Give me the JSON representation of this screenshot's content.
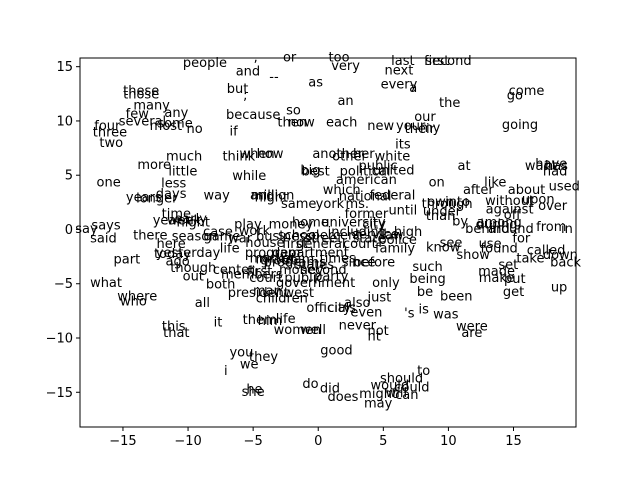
{
  "chart_data": {
    "type": "scatter",
    "title": "",
    "xlabel": "",
    "ylabel": "",
    "xlim": [
      -18.3,
      19.8
    ],
    "ylim": [
      -18.2,
      15.8
    ],
    "xticks": [
      -15,
      -10,
      -5,
      0,
      5,
      10,
      15
    ],
    "yticks": [
      -15,
      -10,
      -5,
      0,
      5,
      10,
      15
    ],
    "grid": false,
    "legend": "none",
    "points": [
      {
        "label": "people",
        "x": -8.7,
        "y": 15.3
      },
      {
        "label": ",",
        "x": -4.8,
        "y": 15.8
      },
      {
        "label": "or",
        "x": -2.2,
        "y": 15.8
      },
      {
        "label": "too",
        "x": 1.6,
        "y": 15.8
      },
      {
        "label": "last",
        "x": 6.5,
        "y": 15.5
      },
      {
        "label": "first",
        "x": 9.1,
        "y": 15.5
      },
      {
        "label": "second",
        "x": 10.0,
        "y": 15.5
      },
      {
        "label": "and",
        "x": -5.4,
        "y": 14.5
      },
      {
        "label": "very",
        "x": 2.1,
        "y": 15.0
      },
      {
        "label": "next",
        "x": 6.2,
        "y": 14.6
      },
      {
        "label": "--",
        "x": -3.4,
        "y": 14.0
      },
      {
        "label": "as",
        "x": -0.2,
        "y": 13.5
      },
      {
        "label": "every",
        "x": 6.2,
        "y": 13.3
      },
      {
        "label": "a",
        "x": 7.3,
        "y": 13.0
      },
      {
        "label": "these",
        "x": -13.6,
        "y": 12.7
      },
      {
        "label": "those",
        "x": -13.6,
        "y": 12.4
      },
      {
        "label": "but",
        "x": -6.2,
        "y": 12.9
      },
      {
        "label": ";",
        "x": -5.6,
        "y": 12.3
      },
      {
        "label": "go",
        "x": 15.1,
        "y": 12.3
      },
      {
        "label": "come",
        "x": 16.0,
        "y": 12.7
      },
      {
        "label": "an",
        "x": 2.1,
        "y": 11.8
      },
      {
        "label": "the",
        "x": 10.1,
        "y": 11.6
      },
      {
        "label": "many",
        "x": -12.8,
        "y": 11.4
      },
      {
        "label": "so",
        "x": -1.9,
        "y": 10.9
      },
      {
        "label": "few",
        "x": -13.9,
        "y": 10.6
      },
      {
        "label": "any",
        "x": -10.9,
        "y": 10.7
      },
      {
        "label": "because",
        "x": -5.0,
        "y": 10.5
      },
      {
        "label": "our",
        "x": 8.2,
        "y": 10.3
      },
      {
        "label": "several",
        "x": -13.5,
        "y": 9.9
      },
      {
        "label": "some",
        "x": -11.0,
        "y": 9.7
      },
      {
        "label": "most",
        "x": -11.7,
        "y": 9.5
      },
      {
        "label": "then",
        "x": -2.0,
        "y": 9.8
      },
      {
        "label": "now",
        "x": -1.3,
        "y": 9.8
      },
      {
        "label": "each",
        "x": 1.8,
        "y": 9.8
      },
      {
        "label": "new",
        "x": 4.8,
        "y": 9.5
      },
      {
        "label": "your",
        "x": 7.1,
        "y": 9.5
      },
      {
        "label": "my",
        "x": 8.6,
        "y": 9.3
      },
      {
        "label": "their",
        "x": 7.8,
        "y": 9.2
      },
      {
        "label": "going",
        "x": 15.5,
        "y": 9.6
      },
      {
        "label": "four",
        "x": -16.2,
        "y": 9.5
      },
      {
        "label": "three",
        "x": -16.0,
        "y": 8.9
      },
      {
        "label": "no",
        "x": -9.5,
        "y": 9.2
      },
      {
        "label": "if",
        "x": -6.5,
        "y": 9.0
      },
      {
        "label": "two",
        "x": -15.9,
        "y": 7.9
      },
      {
        "label": "its",
        "x": 6.5,
        "y": 7.8
      },
      {
        "label": "when",
        "x": -4.7,
        "y": 6.9
      },
      {
        "label": "how",
        "x": -3.7,
        "y": 6.9
      },
      {
        "label": "another",
        "x": 1.5,
        "y": 6.9
      },
      {
        "label": "her",
        "x": 3.5,
        "y": 6.9
      },
      {
        "label": "other",
        "x": 2.4,
        "y": 6.7
      },
      {
        "label": "white",
        "x": 5.7,
        "y": 6.7
      },
      {
        "label": "much",
        "x": -10.3,
        "y": 6.7
      },
      {
        "label": "think",
        "x": -6.1,
        "y": 6.7
      },
      {
        "label": "more",
        "x": -12.6,
        "y": 5.9
      },
      {
        "label": "public",
        "x": 4.6,
        "y": 5.8
      },
      {
        "label": "have",
        "x": 17.9,
        "y": 6.0
      },
      {
        "label": "want",
        "x": 17.1,
        "y": 5.8
      },
      {
        "label": "has",
        "x": 18.3,
        "y": 5.8
      },
      {
        "label": "little",
        "x": -10.4,
        "y": 5.3
      },
      {
        "label": "big",
        "x": -0.6,
        "y": 5.4
      },
      {
        "label": "best",
        "x": -0.2,
        "y": 5.3
      },
      {
        "label": "political",
        "x": 3.6,
        "y": 5.3
      },
      {
        "label": "united",
        "x": 5.8,
        "y": 5.4
      },
      {
        "label": "at",
        "x": 11.2,
        "y": 5.8
      },
      {
        "label": "had",
        "x": 18.2,
        "y": 5.3
      },
      {
        "label": "while",
        "x": -5.3,
        "y": 4.9
      },
      {
        "label": "american",
        "x": 3.7,
        "y": 4.5
      },
      {
        "label": "one",
        "x": -16.1,
        "y": 4.3
      },
      {
        "label": "less",
        "x": -11.1,
        "y": 4.2
      },
      {
        "label": "on",
        "x": 9.1,
        "y": 4.3
      },
      {
        "label": "like",
        "x": 13.6,
        "y": 4.3
      },
      {
        "label": "used",
        "x": 18.9,
        "y": 3.9
      },
      {
        "label": "which",
        "x": 1.8,
        "y": 3.6
      },
      {
        "label": "after",
        "x": 12.3,
        "y": 3.6
      },
      {
        "label": "about",
        "x": 16.0,
        "y": 3.6
      },
      {
        "label": "days",
        "x": -11.3,
        "y": 3.2
      },
      {
        "label": "way",
        "x": -7.8,
        "y": 3.1
      },
      {
        "label": "million",
        "x": -3.5,
        "y": 3.1
      },
      {
        "label": "and",
        "x": -4.3,
        "y": 3.1
      },
      {
        "label": "night",
        "x": -3.6,
        "y": 2.9
      },
      {
        "label": "national",
        "x": 3.6,
        "y": 3.0
      },
      {
        "label": "federal",
        "x": 5.7,
        "y": 3.1
      },
      {
        "label": "years",
        "x": -13.4,
        "y": 2.9
      },
      {
        "label": "longer",
        "x": -12.4,
        "y": 2.8
      },
      {
        "label": "without",
        "x": 14.7,
        "y": 2.6
      },
      {
        "label": "into",
        "x": 10.7,
        "y": 2.5
      },
      {
        "label": "own",
        "x": 9.4,
        "y": 2.5
      },
      {
        "label": "through",
        "x": 9.9,
        "y": 2.3
      },
      {
        "label": "upon",
        "x": 16.9,
        "y": 2.7
      },
      {
        "label": "same",
        "x": -1.5,
        "y": 2.3
      },
      {
        "label": "york",
        "x": 0.9,
        "y": 2.3
      },
      {
        "label": "ms.",
        "x": 3.0,
        "y": 2.3
      },
      {
        "label": "over",
        "x": 18.0,
        "y": 2.1
      },
      {
        "label": "against",
        "x": 14.7,
        "y": 1.8
      },
      {
        "label": "until",
        "x": 6.5,
        "y": 1.7
      },
      {
        "label": "under",
        "x": 9.5,
        "y": 1.6
      },
      {
        "label": "former",
        "x": 3.7,
        "y": 1.4
      },
      {
        "label": "time",
        "x": -10.9,
        "y": 1.4
      },
      {
        "label": "than",
        "x": 9.4,
        "y": 1.2
      },
      {
        "label": "off",
        "x": 14.9,
        "y": 1.3
      },
      {
        "label": "by",
        "x": 10.9,
        "y": 0.7
      },
      {
        "label": "year",
        "x": -11.6,
        "y": 0.8
      },
      {
        "label": "early",
        "x": -9.8,
        "y": 0.9
      },
      {
        "label": "week",
        "x": -10.3,
        "y": 0.8
      },
      {
        "label": "night",
        "x": -9.6,
        "y": 0.6
      },
      {
        "label": "home",
        "x": -0.6,
        "y": 0.6
      },
      {
        "label": "university",
        "x": 2.7,
        "y": 0.6
      },
      {
        "label": "city",
        "x": 4.3,
        "y": 0.4
      },
      {
        "label": "play",
        "x": -5.4,
        "y": 0.4
      },
      {
        "label": "money",
        "x": -2.1,
        "y": 0.4
      },
      {
        "label": "during",
        "x": 13.7,
        "y": 0.4
      },
      {
        "label": "among",
        "x": 13.9,
        "y": 0.6
      },
      {
        "label": "behind",
        "x": 13.0,
        "y": 0.0
      },
      {
        "label": "around",
        "x": 14.8,
        "y": 0.0
      },
      {
        "label": "from",
        "x": 17.9,
        "y": 0.2
      },
      {
        "label": "in",
        "x": 19.1,
        "y": 0.0
      },
      {
        "label": "says",
        "x": -16.3,
        "y": 0.3
      },
      {
        "label": "say",
        "x": -17.8,
        "y": 0.0
      },
      {
        "label": "work",
        "x": -4.9,
        "y": -0.2
      },
      {
        "label": "including",
        "x": 3.0,
        "y": -0.3
      },
      {
        "label": "high",
        "x": 6.9,
        "y": -0.3
      },
      {
        "label": "case",
        "x": -7.7,
        "y": -0.3
      },
      {
        "label": "service",
        "x": 4.4,
        "y": -0.5
      },
      {
        "label": "there",
        "x": -12.9,
        "y": -0.6
      },
      {
        "label": "season",
        "x": -9.5,
        "y": -0.7
      },
      {
        "label": "game",
        "x": -7.4,
        "y": -0.7
      },
      {
        "label": "business",
        "x": -2.6,
        "y": -0.7
      },
      {
        "label": "school",
        "x": -1.5,
        "y": -0.6
      },
      {
        "label": "percent",
        "x": 1.4,
        "y": -0.6
      },
      {
        "label": "law",
        "x": 5.7,
        "y": -0.6
      },
      {
        "label": "said",
        "x": -16.5,
        "y": -0.9
      },
      {
        "label": "war",
        "x": -6.0,
        "y": -0.9
      },
      {
        "label": "street",
        "x": 0.4,
        "y": -0.9
      },
      {
        "label": "state",
        "x": 3.9,
        "y": -0.9
      },
      {
        "label": "police",
        "x": 6.1,
        "y": -1.0
      },
      {
        "label": "for",
        "x": 15.6,
        "y": -0.9
      },
      {
        "label": "here",
        "x": -11.3,
        "y": -1.4
      },
      {
        "label": "house",
        "x": -4.1,
        "y": -1.3
      },
      {
        "label": "first",
        "x": -1.8,
        "y": -1.4
      },
      {
        "label": "general",
        "x": 0.2,
        "y": -1.4
      },
      {
        "label": "court",
        "x": 3.2,
        "y": -1.4
      },
      {
        "label": "see",
        "x": 10.2,
        "y": -1.3
      },
      {
        "label": "use",
        "x": 13.2,
        "y": -1.4
      },
      {
        "label": "know",
        "x": 9.6,
        "y": -1.7
      },
      {
        "label": "found",
        "x": 13.9,
        "y": -1.8
      },
      {
        "label": "called",
        "x": 17.5,
        "y": -2.0
      },
      {
        "label": "life",
        "x": -6.8,
        "y": -1.8
      },
      {
        "label": "family",
        "x": 5.9,
        "y": -1.8
      },
      {
        "label": "today",
        "x": -11.2,
        "y": -2.3
      },
      {
        "label": "yesterday",
        "x": -10.0,
        "y": -2.2
      },
      {
        "label": "program",
        "x": -3.5,
        "y": -2.2
      },
      {
        "label": "department",
        "x": -0.6,
        "y": -2.2
      },
      {
        "label": "down",
        "x": 18.6,
        "y": -2.4
      },
      {
        "label": "show",
        "x": 11.9,
        "y": -2.4
      },
      {
        "label": "take",
        "x": 16.3,
        "y": -2.7
      },
      {
        "label": "part",
        "x": -14.7,
        "y": -2.8
      },
      {
        "label": "mr.",
        "x": -4.0,
        "y": -2.8
      },
      {
        "label": "team",
        "x": -1.6,
        "y": -2.8
      },
      {
        "label": "times",
        "x": 1.5,
        "y": -2.7
      },
      {
        "label": "group",
        "x": -3.0,
        "y": -2.9
      },
      {
        "label": "market",
        "x": -3.5,
        "y": -2.7
      },
      {
        "label": "ago",
        "x": -10.8,
        "y": -3.0
      },
      {
        "label": "back",
        "x": 19.0,
        "y": -3.1
      },
      {
        "label": "programs",
        "x": -1.8,
        "y": -3.1
      },
      {
        "label": "states",
        "x": -0.3,
        "y": -3.3
      },
      {
        "label": "since",
        "x": 3.1,
        "y": -3.1
      },
      {
        "label": "before",
        "x": 4.3,
        "y": -3.1
      },
      {
        "label": "set",
        "x": 14.6,
        "y": -3.3
      },
      {
        "label": "such",
        "x": 8.4,
        "y": -3.5
      },
      {
        "label": "though",
        "x": -9.6,
        "y": -3.6
      },
      {
        "label": "center",
        "x": -6.5,
        "y": -3.8
      },
      {
        "label": "first",
        "x": -4.5,
        "y": -3.9
      },
      {
        "label": "money",
        "x": -1.3,
        "y": -3.8
      },
      {
        "label": "second",
        "x": 0.4,
        "y": -3.8
      },
      {
        "label": "members",
        "x": -5.1,
        "y": -4.2
      },
      {
        "label": "made",
        "x": 13.7,
        "y": -3.9
      },
      {
        "label": "out",
        "x": -9.6,
        "y": -4.4
      },
      {
        "label": "court",
        "x": -4.0,
        "y": -4.5
      },
      {
        "label": "public",
        "x": -1.1,
        "y": -4.5
      },
      {
        "label": "party",
        "x": 1.0,
        "y": -4.4
      },
      {
        "label": "being",
        "x": 8.4,
        "y": -4.6
      },
      {
        "label": "make",
        "x": 13.7,
        "y": -4.5
      },
      {
        "label": "put",
        "x": 15.1,
        "y": -4.6
      },
      {
        "label": "what",
        "x": -16.3,
        "y": -5.0
      },
      {
        "label": "both",
        "x": -7.5,
        "y": -5.1
      },
      {
        "label": "government",
        "x": -0.2,
        "y": -5.0
      },
      {
        "label": "only",
        "x": 5.2,
        "y": -5.0
      },
      {
        "label": "up",
        "x": 18.5,
        "y": -5.4
      },
      {
        "label": "be",
        "x": 8.2,
        "y": -5.8
      },
      {
        "label": "get",
        "x": 15.0,
        "y": -5.8
      },
      {
        "label": "man",
        "x": -3.9,
        "y": -5.7
      },
      {
        "label": "west",
        "x": -1.5,
        "y": -5.9
      },
      {
        "label": "president",
        "x": -4.6,
        "y": -5.9
      },
      {
        "label": "where",
        "x": -13.9,
        "y": -6.2
      },
      {
        "label": "been",
        "x": 10.6,
        "y": -6.2
      },
      {
        "label": "just",
        "x": 4.7,
        "y": -6.3
      },
      {
        "label": "children",
        "x": -2.8,
        "y": -6.4
      },
      {
        "label": "who",
        "x": -14.2,
        "y": -6.7
      },
      {
        "label": "all",
        "x": -8.9,
        "y": -6.8
      },
      {
        "label": "also",
        "x": 3.0,
        "y": -6.8
      },
      {
        "label": "officials",
        "x": 1.0,
        "y": -7.3
      },
      {
        "label": "city",
        "x": 1.6,
        "y": -7.3
      },
      {
        "label": "is",
        "x": 8.1,
        "y": -7.4
      },
      {
        "label": "even",
        "x": 3.7,
        "y": -7.7
      },
      {
        "label": "'s",
        "x": 7.0,
        "y": -7.8
      },
      {
        "label": "was",
        "x": 9.8,
        "y": -7.9
      },
      {
        "label": "it",
        "x": -7.7,
        "y": -8.6
      },
      {
        "label": "them",
        "x": -4.5,
        "y": -8.4
      },
      {
        "label": "him",
        "x": -3.7,
        "y": -8.5
      },
      {
        "label": "life",
        "x": -2.5,
        "y": -8.3
      },
      {
        "label": "this",
        "x": -11.1,
        "y": -9.0
      },
      {
        "label": "never",
        "x": 3.0,
        "y": -8.9
      },
      {
        "label": "were",
        "x": 11.8,
        "y": -9.0
      },
      {
        "label": "that",
        "x": -10.9,
        "y": -9.6
      },
      {
        "label": "women",
        "x": -1.6,
        "y": -9.3
      },
      {
        "label": "well",
        "x": -0.4,
        "y": -9.3
      },
      {
        "label": "not",
        "x": 4.6,
        "y": -9.4
      },
      {
        "label": "are",
        "x": 11.8,
        "y": -9.6
      },
      {
        "label": "nt",
        "x": 4.3,
        "y": -9.9
      },
      {
        "label": "good",
        "x": 1.4,
        "y": -11.2
      },
      {
        "label": "you",
        "x": -5.9,
        "y": -11.4
      },
      {
        "label": "they",
        "x": -4.2,
        "y": -11.8
      },
      {
        "label": "we",
        "x": -5.3,
        "y": -12.5
      },
      {
        "label": "to",
        "x": 8.1,
        "y": -13.1
      },
      {
        "label": "i",
        "x": -7.1,
        "y": -13.1
      },
      {
        "label": "should",
        "x": 6.4,
        "y": -13.8
      },
      {
        "label": "do",
        "x": -0.6,
        "y": -14.3
      },
      {
        "label": "would",
        "x": 5.5,
        "y": -14.4
      },
      {
        "label": "could",
        "x": 7.2,
        "y": -14.6
      },
      {
        "label": "did",
        "x": 0.9,
        "y": -14.7
      },
      {
        "label": "he",
        "x": -4.9,
        "y": -14.8
      },
      {
        "label": "she",
        "x": -5.0,
        "y": -15.0
      },
      {
        "label": "might",
        "x": 4.6,
        "y": -15.2
      },
      {
        "label": "can",
        "x": 6.8,
        "y": -15.3
      },
      {
        "label": "does",
        "x": 1.9,
        "y": -15.5
      },
      {
        "label": "will",
        "x": 6.0,
        "y": -15.1
      },
      {
        "label": "may",
        "x": 4.6,
        "y": -16.1
      }
    ]
  }
}
